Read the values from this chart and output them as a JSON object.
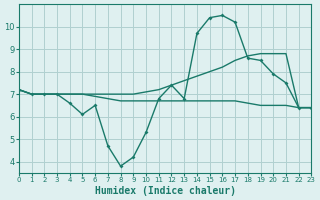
{
  "background_color": "#dff0f0",
  "grid_color": "#b0d0d0",
  "line_color": "#1a7a6a",
  "xlabel": "Humidex (Indice chaleur)",
  "xlim": [
    0,
    23
  ],
  "ylim": [
    3.5,
    11
  ],
  "xticks": [
    0,
    1,
    2,
    3,
    4,
    5,
    6,
    7,
    8,
    9,
    10,
    11,
    12,
    13,
    14,
    15,
    16,
    17,
    18,
    19,
    20,
    21,
    22,
    23
  ],
  "yticks": [
    4,
    5,
    6,
    7,
    8,
    9,
    10
  ],
  "line1_x": [
    0,
    1,
    2,
    3,
    4,
    5,
    6,
    7,
    8,
    9,
    10,
    11,
    12,
    13,
    14,
    15,
    16,
    17,
    18,
    19,
    20,
    21,
    22,
    23
  ],
  "line1_y": [
    7.2,
    7.0,
    7.0,
    7.0,
    6.6,
    6.1,
    6.5,
    4.7,
    3.8,
    4.2,
    5.3,
    6.8,
    7.4,
    6.8,
    9.7,
    10.4,
    10.5,
    10.2,
    8.6,
    8.5,
    7.9,
    7.5,
    6.4,
    6.4
  ],
  "line2_x": [
    0,
    1,
    2,
    3,
    4,
    5,
    6,
    7,
    8,
    9,
    10,
    11,
    12,
    13,
    14,
    15,
    16,
    17,
    18,
    19,
    20,
    21,
    22,
    23
  ],
  "line2_y": [
    7.2,
    7.0,
    7.0,
    7.0,
    7.0,
    7.0,
    7.0,
    7.0,
    7.0,
    7.0,
    7.1,
    7.2,
    7.4,
    7.6,
    7.8,
    8.0,
    8.2,
    8.5,
    8.7,
    8.8,
    8.8,
    8.8,
    6.4,
    6.4
  ],
  "line3_x": [
    0,
    1,
    2,
    3,
    4,
    5,
    6,
    7,
    8,
    9,
    10,
    11,
    12,
    13,
    14,
    15,
    16,
    17,
    18,
    19,
    20,
    21,
    22,
    23
  ],
  "line3_y": [
    7.2,
    7.0,
    7.0,
    7.0,
    7.0,
    7.0,
    6.9,
    6.8,
    6.7,
    6.7,
    6.7,
    6.7,
    6.7,
    6.7,
    6.7,
    6.7,
    6.7,
    6.7,
    6.6,
    6.5,
    6.5,
    6.5,
    6.4,
    6.4
  ]
}
